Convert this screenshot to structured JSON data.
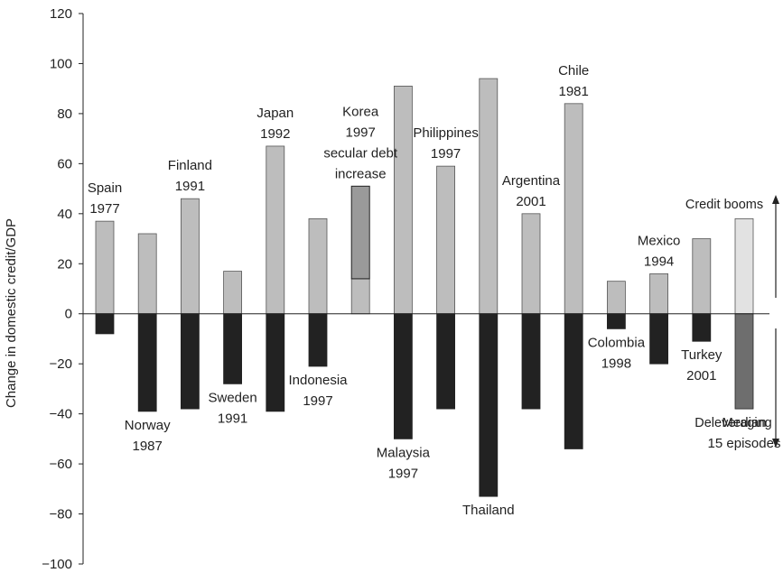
{
  "chart_data": {
    "type": "bar",
    "ylabel": "Change in domestic credit/GDP",
    "ylim": [
      -100,
      120
    ],
    "yticks": [
      120,
      100,
      80,
      60,
      40,
      20,
      0,
      -20,
      -40,
      -60,
      -80,
      -100
    ],
    "grid": false,
    "colors": {
      "boom": "#bdbdbd",
      "delever": "#222222",
      "korea_secular": "#9a9a9a",
      "median_boom": "#e2e2e2",
      "median_delever": "#6e6e6e"
    },
    "episodes": [
      {
        "label": "Spain\n1977",
        "label_pos": "top",
        "boom": 37,
        "delever": -8
      },
      {
        "label": "Norway\n1987",
        "label_pos": "bottom",
        "boom": 32,
        "delever": -39
      },
      {
        "label": "Finland\n1991",
        "label_pos": "top",
        "boom": 46,
        "delever": -38
      },
      {
        "label": "Sweden\n1991",
        "label_pos": "bottom",
        "boom": 17,
        "delever": -28
      },
      {
        "label": "Japan\n1992",
        "label_pos": "top",
        "boom": 67,
        "delever": -39
      },
      {
        "label": "Indonesia\n1997",
        "label_pos": "bottom",
        "boom": 38,
        "delever": -21
      },
      {
        "label": "Korea\n1997\nsecular debt\nincrease",
        "label_pos": "top",
        "boom": 14,
        "secular_debt_increase": 51,
        "delever": 0
      },
      {
        "label": "Malaysia\n1997",
        "label_pos": "bottom",
        "boom": 91,
        "delever": -50
      },
      {
        "label": "Philippines\n1997",
        "label_pos": "top",
        "boom": 59,
        "delever": -38
      },
      {
        "label": "Thailand",
        "label_pos": "bottom",
        "boom": 94,
        "delever": -73
      },
      {
        "label": "Argentina\n2001",
        "label_pos": "top",
        "boom": 40,
        "delever": -38
      },
      {
        "label": "Chile\n1981",
        "label_pos": "top",
        "boom": 84,
        "delever": -54
      },
      {
        "label": "Colombia\n1998",
        "label_pos": "bottom",
        "boom": 13,
        "delever": -6
      },
      {
        "label": "Mexico\n1994",
        "label_pos": "top",
        "boom": 16,
        "delever": -20
      },
      {
        "label": "Turkey\n2001",
        "label_pos": "bottom",
        "boom": 30,
        "delever": -11
      },
      {
        "label": "Median\n15 episodes",
        "label_pos": "bottom",
        "boom": 38,
        "delever": -38,
        "median": true
      }
    ],
    "annotations": {
      "credit_booms": "Credit booms",
      "deleveraging": "Deleveraging"
    }
  }
}
